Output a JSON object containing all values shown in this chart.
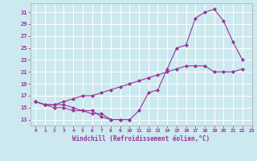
{
  "xlabel": "Windchill (Refroidissement éolien,°C)",
  "xlim": [
    -0.5,
    23
  ],
  "ylim": [
    12,
    32.5
  ],
  "yticks": [
    13,
    15,
    17,
    19,
    21,
    23,
    25,
    27,
    29,
    31
  ],
  "xticks": [
    0,
    1,
    2,
    3,
    4,
    5,
    6,
    7,
    8,
    9,
    10,
    11,
    12,
    13,
    14,
    15,
    16,
    17,
    18,
    19,
    20,
    21,
    22,
    23
  ],
  "bg_color": "#cce9f0",
  "line_color": "#993399",
  "grid_color": "#ffffff",
  "line1_y": [
    16,
    15.5,
    15.5,
    15.5,
    15,
    14.5,
    14.5,
    13.5,
    13,
    13,
    13,
    14.5,
    17.5,
    18,
    21.5,
    25,
    25.5,
    30,
    31,
    31.5,
    29.5,
    26,
    23,
    null
  ],
  "line2_y": [
    16,
    15.5,
    15,
    15,
    14.5,
    14.5,
    14,
    14,
    13,
    13,
    13,
    null,
    null,
    null,
    null,
    null,
    null,
    null,
    null,
    null,
    null,
    null,
    null,
    null
  ],
  "line3_y": [
    16,
    15.5,
    15.5,
    16,
    16.5,
    17,
    17,
    17.5,
    18,
    18.5,
    19,
    19.5,
    20,
    20.5,
    21,
    21.5,
    22,
    22,
    22,
    21,
    21,
    21,
    21.5,
    null
  ]
}
